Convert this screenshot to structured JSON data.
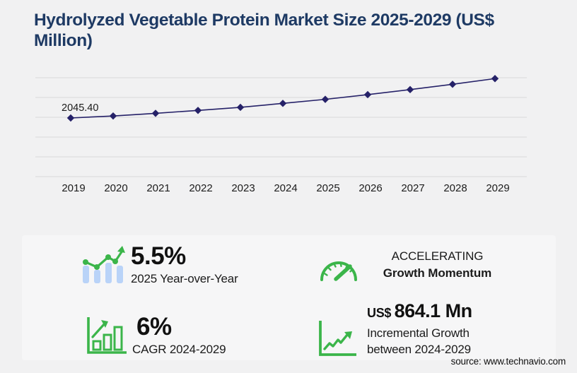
{
  "title": "Hydrolyzed Vegetable Protein Market Size 2025-2029 (US$ Million)",
  "source": "source: www.technavio.com",
  "colors": {
    "background": "#f1f1f2",
    "panel": "#f6f6f7",
    "title_navy": "#1e3a64",
    "line_navy": "#252168",
    "gridline": "#d9d9db",
    "green": "#3bb54a",
    "light_blue": "#b9d3f8",
    "text_dark": "#141414"
  },
  "chart_data": {
    "type": "line",
    "title": "Hydrolyzed Vegetable Protein Market Size 2025-2029 (US$ Million)",
    "x": [
      "2019",
      "2020",
      "2021",
      "2022",
      "2023",
      "2024",
      "2025",
      "2026",
      "2027",
      "2028",
      "2029"
    ],
    "values": [
      2045.4,
      2115,
      2208,
      2309,
      2416,
      2554.9,
      2695.4,
      2860,
      3035,
      3221,
      3419
    ],
    "point_label": {
      "x": "2019",
      "text": "2045.40"
    },
    "xlabel": "",
    "ylabel": "",
    "ylim": [
      0,
      3450
    ],
    "grid": true,
    "gridline_count": 6,
    "legend": "none",
    "marker": "diamond"
  },
  "stats": {
    "yoy": {
      "value": "5.5%",
      "label": "2025 Year-over-Year",
      "icon": "bar-chart-trend-up-icon"
    },
    "momentum": {
      "line1": "ACCELERATING",
      "line2": "Growth Momentum",
      "icon": "speedometer-icon"
    },
    "cagr": {
      "value": "6%",
      "label": "CAGR 2024-2029",
      "icon": "growth-bars-arrow-icon"
    },
    "incremental": {
      "currency": "US$",
      "value": "864.1 Mn",
      "line1": "Incremental Growth",
      "line2": "between 2024-2029",
      "icon": "zigzag-growth-icon"
    }
  }
}
